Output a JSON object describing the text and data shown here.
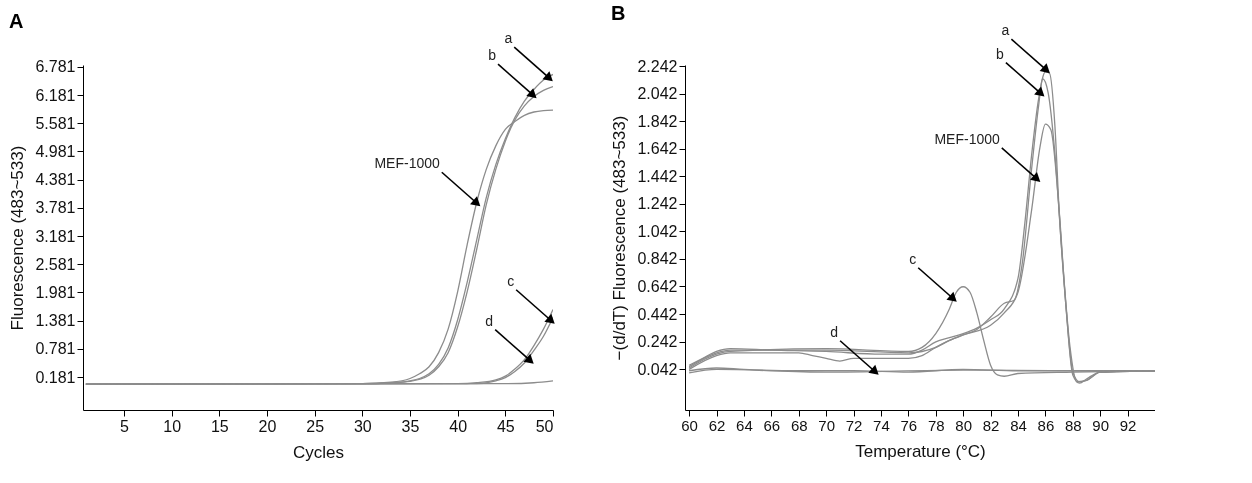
{
  "chart_data": [
    {
      "type": "line",
      "title": "A",
      "xlabel": "Cycles",
      "ylabel": "Fluorescence (483~533)",
      "xlim": [
        0.7,
        50
      ],
      "xticks": [
        5,
        10,
        15,
        20,
        25,
        30,
        35,
        40,
        45,
        50
      ],
      "ylim": [
        -0.52,
        6.82
      ],
      "yticks": [
        0.181,
        0.781,
        1.381,
        1.981,
        2.581,
        3.181,
        3.781,
        4.381,
        4.981,
        5.581,
        6.181,
        6.781
      ],
      "grid": false,
      "series": [
        {
          "color": "#8c8c8c",
          "x": [
            1,
            30,
            33,
            35,
            36,
            37,
            38,
            39,
            40,
            41,
            42,
            43,
            44,
            45,
            46,
            47,
            48,
            49,
            50
          ],
          "values": [
            0.03,
            0.04,
            0.07,
            0.15,
            0.25,
            0.4,
            0.7,
            1.2,
            2.0,
            3.0,
            3.9,
            4.6,
            5.1,
            5.45,
            5.62,
            5.75,
            5.82,
            5.85,
            5.86
          ]
        },
        {
          "color": "#8c8c8c",
          "x": [
            1,
            30,
            33,
            35,
            36,
            37,
            38,
            39,
            40,
            41,
            42,
            43,
            44,
            45,
            46,
            47,
            48,
            49,
            50
          ],
          "values": [
            0.03,
            0.04,
            0.06,
            0.1,
            0.15,
            0.25,
            0.45,
            0.8,
            1.4,
            2.2,
            3.1,
            4.0,
            4.7,
            5.25,
            5.7,
            6.05,
            6.3,
            6.5,
            6.62
          ]
        },
        {
          "color": "#8c8c8c",
          "x": [
            1,
            30,
            33,
            35,
            37,
            38,
            39,
            40,
            41,
            42,
            43,
            44,
            45,
            46,
            47,
            48,
            49,
            50
          ],
          "values": [
            0.03,
            0.04,
            0.06,
            0.09,
            0.22,
            0.4,
            0.7,
            1.25,
            2.0,
            2.9,
            3.85,
            4.6,
            5.2,
            5.65,
            5.95,
            6.15,
            6.28,
            6.36
          ]
        },
        {
          "color": "#8c8c8c",
          "x": [
            1,
            40,
            42,
            44,
            45,
            46,
            47,
            48,
            49,
            50
          ],
          "values": [
            0.03,
            0.04,
            0.06,
            0.12,
            0.2,
            0.35,
            0.55,
            0.85,
            1.2,
            1.62
          ]
        },
        {
          "color": "#8c8c8c",
          "x": [
            1,
            42,
            44,
            45,
            46,
            47,
            48,
            49,
            50
          ],
          "values": [
            0.03,
            0.04,
            0.1,
            0.17,
            0.3,
            0.48,
            0.75,
            1.05,
            1.45
          ]
        },
        {
          "color": "#8c8c8c",
          "x": [
            1,
            45,
            48,
            50
          ],
          "values": [
            0.03,
            0.04,
            0.06,
            0.1
          ]
        }
      ],
      "annotations": [
        {
          "text": "a",
          "x": 49.5,
          "y": 6.56
        },
        {
          "text": "b",
          "x": 47.8,
          "y": 6.2
        },
        {
          "text": "MEF-1000",
          "x": 41.9,
          "y": 3.9
        },
        {
          "text": "c",
          "x": 49.7,
          "y": 1.4
        },
        {
          "text": "d",
          "x": 47.5,
          "y": 0.55
        }
      ]
    },
    {
      "type": "line",
      "title": "B",
      "xlabel": "Temperature (°C)",
      "ylabel": "−(d/dT) Fluorescence (483~533)",
      "xlim": [
        59.7,
        94
      ],
      "xticks": [
        60,
        62,
        64,
        66,
        68,
        70,
        72,
        74,
        76,
        78,
        80,
        82,
        84,
        86,
        88,
        90,
        92
      ],
      "ylim": [
        -0.255,
        2.25
      ],
      "yticks": [
        0.042,
        0.242,
        0.442,
        0.642,
        0.842,
        1.042,
        1.242,
        1.442,
        1.642,
        1.842,
        2.042,
        2.242
      ],
      "grid": false,
      "series": [
        {
          "color": "#8c8c8c",
          "x": [
            60,
            61,
            62,
            63,
            66,
            70,
            74,
            76,
            77,
            78,
            79,
            80,
            81,
            82,
            83,
            84,
            84.5,
            85,
            85.5,
            86,
            86.3,
            86.7,
            87,
            87.5,
            88,
            88.5,
            89,
            90,
            94
          ],
          "values": [
            0.07,
            0.12,
            0.17,
            0.19,
            0.18,
            0.17,
            0.15,
            0.15,
            0.18,
            0.24,
            0.27,
            0.3,
            0.34,
            0.4,
            0.48,
            0.7,
            1.1,
            1.6,
            2.0,
            2.2,
            2.19,
            1.8,
            1.2,
            0.5,
            0.02,
            -0.05,
            -0.04,
            0.02,
            0.03
          ]
        },
        {
          "color": "#8c8c8c",
          "x": [
            60,
            62,
            63,
            70,
            76,
            78,
            79,
            80,
            81,
            82,
            83,
            83.7,
            84.3,
            85,
            85.5,
            85.8,
            86.2,
            86.7,
            87.2,
            87.8,
            88.3,
            89,
            90,
            94
          ],
          "values": [
            0.06,
            0.16,
            0.18,
            0.18,
            0.16,
            0.2,
            0.25,
            0.29,
            0.33,
            0.42,
            0.52,
            0.54,
            0.8,
            1.5,
            1.95,
            2.15,
            2.05,
            1.6,
            0.9,
            0.2,
            -0.05,
            -0.04,
            0.02,
            0.03
          ]
        },
        {
          "color": "#8c8c8c",
          "x": [
            60,
            62,
            63,
            68,
            69,
            70,
            71,
            72,
            76,
            77,
            78,
            79,
            80,
            82,
            83,
            84,
            85,
            85.6,
            86,
            86.4,
            87,
            87.5,
            88,
            88.5,
            89,
            90,
            94
          ],
          "values": [
            0.04,
            0.14,
            0.16,
            0.16,
            0.14,
            0.12,
            0.1,
            0.12,
            0.12,
            0.14,
            0.2,
            0.25,
            0.29,
            0.36,
            0.45,
            0.6,
            1.2,
            1.65,
            1.82,
            1.78,
            1.2,
            0.5,
            0.0,
            -0.06,
            -0.03,
            0.02,
            0.03
          ]
        },
        {
          "color": "#8c8c8c",
          "x": [
            60,
            62,
            63,
            70,
            76,
            77,
            78,
            79,
            79.5,
            80,
            80.5,
            81,
            81.5,
            82,
            82.5,
            83,
            84,
            88,
            94
          ],
          "values": [
            0.05,
            0.15,
            0.17,
            0.19,
            0.17,
            0.2,
            0.3,
            0.48,
            0.6,
            0.64,
            0.6,
            0.45,
            0.25,
            0.07,
            0.0,
            -0.01,
            0.01,
            0.02,
            0.03
          ]
        },
        {
          "color": "#8c8c8c",
          "x": [
            60,
            62,
            64,
            68,
            72,
            76,
            80,
            84,
            94
          ],
          "values": [
            0.03,
            0.05,
            0.04,
            0.03,
            0.03,
            0.02,
            0.04,
            0.03,
            0.03
          ]
        },
        {
          "color": "#8c8c8c",
          "x": [
            60,
            62,
            70,
            80,
            94
          ],
          "values": [
            0.015,
            0.04,
            0.02,
            0.035,
            0.025
          ]
        }
      ],
      "annotations": [
        {
          "text": "a",
          "x": 86.0,
          "y": 2.22
        },
        {
          "text": "b",
          "x": 85.6,
          "y": 2.05
        },
        {
          "text": "MEF-1000",
          "x": 85.3,
          "y": 1.43
        },
        {
          "text": "c",
          "x": 79.2,
          "y": 0.56
        },
        {
          "text": "d",
          "x": 73.5,
          "y": 0.03
        }
      ]
    }
  ]
}
